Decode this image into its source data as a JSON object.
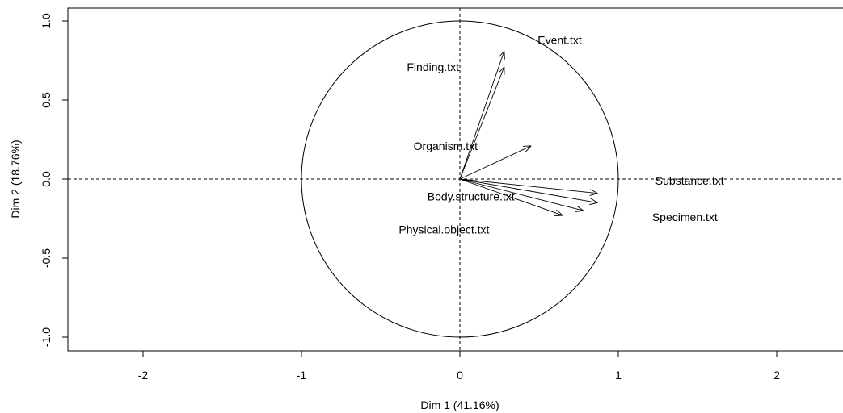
{
  "chart_data": {
    "type": "scatter",
    "subtype": "pca-variables-factor-map",
    "title": "",
    "xlabel": "Dim 1 (41.16%)",
    "ylabel": "Dim 2 (18.76%)",
    "xlim": [
      -2.45,
      2.45
    ],
    "ylim": [
      -1.08,
      1.08
    ],
    "xticks": [
      -2,
      -1,
      0,
      1,
      2
    ],
    "xtick_labels": [
      "-2",
      "-1",
      "0",
      "1",
      "2"
    ],
    "yticks": [
      -1.0,
      -0.5,
      0.0,
      0.5,
      1.0
    ],
    "ytick_labels": [
      "-1.0",
      "-0.5",
      "0.0",
      "0.5",
      "1.0"
    ],
    "unit_circle": true,
    "reference_lines": {
      "x": 0,
      "y": 0,
      "style": "dashed"
    },
    "grid": false,
    "arrow_color": "#000000",
    "variables": [
      {
        "name": "Event.txt",
        "x": 0.28,
        "y": 0.81,
        "label_x": 0.63,
        "label_y": 0.88
      },
      {
        "name": "Finding.txt",
        "x": 0.28,
        "y": 0.71,
        "label_x": -0.17,
        "label_y": 0.71
      },
      {
        "name": "Organism.txt",
        "x": 0.45,
        "y": 0.21,
        "label_x": -0.09,
        "label_y": 0.21
      },
      {
        "name": "Substance.txt",
        "x": 0.87,
        "y": -0.09,
        "label_x": 1.45,
        "label_y": -0.01
      },
      {
        "name": "Specimen.txt",
        "x": 0.87,
        "y": -0.15,
        "label_x": 1.42,
        "label_y": -0.24
      },
      {
        "name": "Body.structure.txt",
        "x": 0.78,
        "y": -0.2,
        "label_x": 0.07,
        "label_y": -0.11
      },
      {
        "name": "Physical.object.txt",
        "x": 0.65,
        "y": -0.23,
        "label_x": -0.1,
        "label_y": -0.32
      }
    ]
  }
}
